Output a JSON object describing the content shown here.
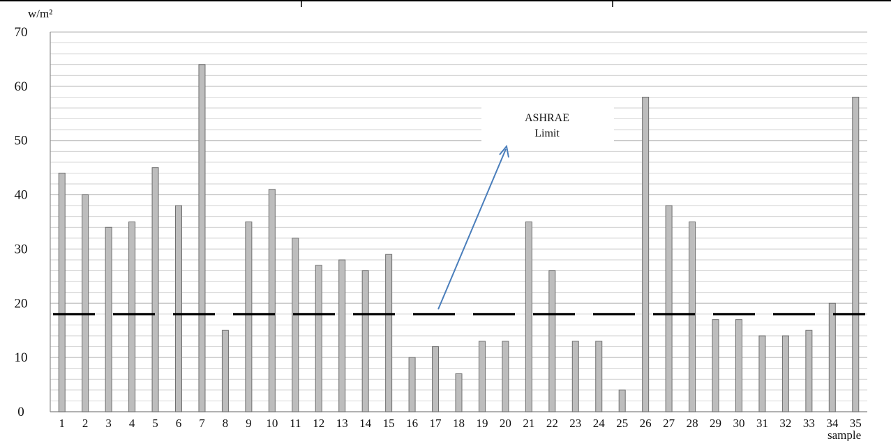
{
  "chart_data": {
    "type": "bar",
    "ylabel": "w/m²",
    "xlabel": "sample",
    "ylim": [
      0,
      70
    ],
    "yticks": [
      0,
      10,
      20,
      30,
      40,
      50,
      60,
      70
    ],
    "ytick_labels": [
      "0",
      "10",
      "20",
      "30",
      "40",
      "50",
      "60",
      "70"
    ],
    "grid": true,
    "categories": [
      "1",
      "2",
      "3",
      "4",
      "5",
      "6",
      "7",
      "8",
      "9",
      "10",
      "11",
      "12",
      "13",
      "14",
      "15",
      "16",
      "17",
      "18",
      "19",
      "20",
      "21",
      "22",
      "23",
      "24",
      "25",
      "26",
      "27",
      "28",
      "29",
      "30",
      "31",
      "32",
      "33",
      "34",
      "35"
    ],
    "values": [
      44,
      40,
      34,
      35,
      45,
      38,
      64,
      15,
      35,
      41,
      32,
      27,
      28,
      26,
      29,
      10,
      12,
      7,
      13,
      13,
      35,
      26,
      13,
      13,
      4,
      58,
      38,
      35,
      17,
      17,
      14,
      14,
      15,
      20,
      58
    ],
    "limit": {
      "value": 18,
      "style": "dashed"
    },
    "annotation": {
      "line1": "ASHRAE",
      "line2": "Limit"
    },
    "colors": {
      "bar_fill": "#bdbdbd",
      "bar_stroke": "#6e6e6e",
      "limit_line": "#000000",
      "arrow": "#4a7ebb",
      "grid": "#bfbfbf"
    }
  }
}
